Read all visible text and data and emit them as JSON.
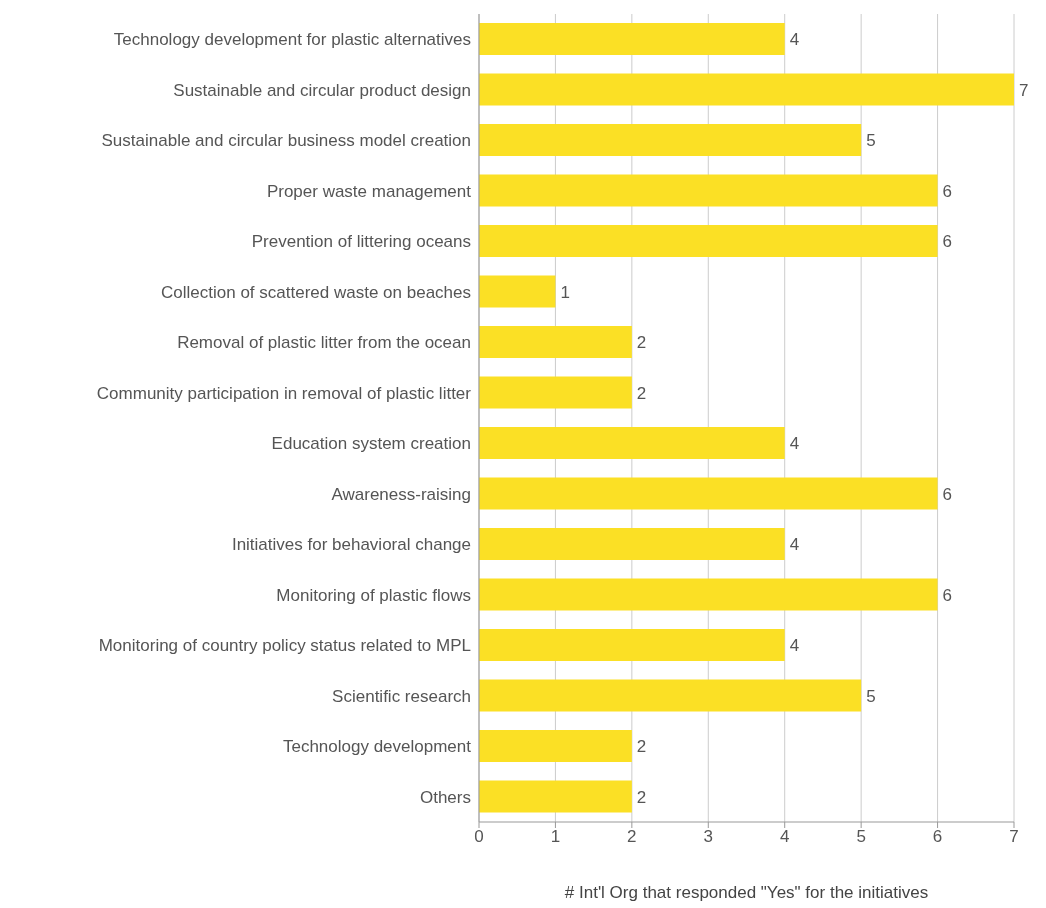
{
  "chart_data": {
    "type": "bar",
    "orientation": "horizontal",
    "xlabel": "# Int'l Org that responded \"Yes\" for the initiatives",
    "categories": [
      "Technology development for plastic alternatives",
      "Sustainable and circular product design",
      "Sustainable and circular business model creation",
      "Proper waste management",
      "Prevention of littering oceans",
      "Collection of scattered waste on beaches",
      "Removal of plastic litter from the ocean",
      "Community participation in removal of plastic litter",
      "Education system creation",
      "Awareness-raising",
      "Initiatives for behavioral change",
      "Monitoring of plastic flows",
      "Monitoring of country policy status related to MPL",
      "Scientific research",
      "Technology development",
      "Others"
    ],
    "values": [
      4,
      7,
      5,
      6,
      6,
      1,
      2,
      2,
      4,
      6,
      4,
      6,
      4,
      5,
      2,
      2
    ],
    "color": "#fbe025",
    "xlim": [
      0,
      7
    ],
    "xticks": [
      0,
      1,
      2,
      3,
      4,
      5,
      6,
      7
    ],
    "grid": "x",
    "data_labels": true,
    "legend": false
  }
}
